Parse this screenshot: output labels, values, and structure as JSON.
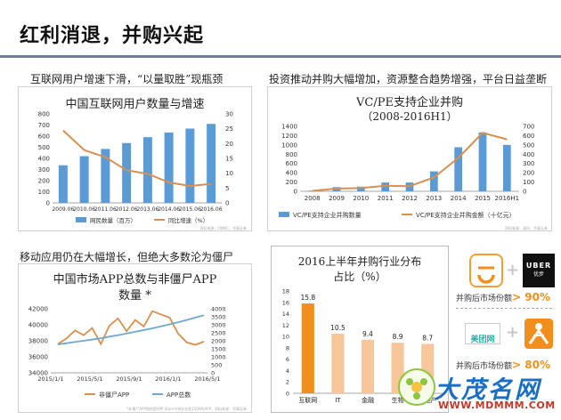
{
  "page": {
    "title": "红利消退，并购兴起",
    "colors": {
      "bar_orange": "#f28e1c",
      "bar_blue": "#5b9bd5",
      "line_orange": "#d7904f",
      "line_blue": "#6fa8cf",
      "rule": "#6d7f96"
    }
  },
  "sections": {
    "top_left_caption": "互联网用户增速下滑，“以量取胜”现瓶颈",
    "top_right_caption": "投资推动并购大幅增加，资源整合趋势增强，平台日益垄断",
    "bottom_left_caption": "移动应用仍在大幅增长，但绝大多数沦为僵尸"
  },
  "chart_data": [
    {
      "id": "internet-users",
      "type": "bar",
      "title": "中国互联网用户数量与增速",
      "categories": [
        "2009.06",
        "2010.06",
        "2011.06",
        "2012.06",
        "2013.06",
        "2014.06",
        "2015.06",
        "2016.06"
      ],
      "series": [
        {
          "name": "网民数量（百万）",
          "type": "bar",
          "axis": "left",
          "values": [
            338,
            420,
            485,
            538,
            591,
            632,
            668,
            710
          ]
        },
        {
          "name": "同比增速（%）",
          "type": "line",
          "axis": "right",
          "values": [
            24.4,
            17.8,
            15.4,
            11.0,
            9.8,
            6.9,
            5.7,
            6.4
          ]
        }
      ],
      "y_left": {
        "min": 0,
        "max": 800,
        "ticks": [
          0,
          100,
          200,
          300,
          400,
          500,
          600,
          700,
          800
        ]
      },
      "y_right": {
        "min": 0,
        "max": 30,
        "ticks": [
          0,
          5,
          10,
          15,
          20,
          25,
          30
        ]
      },
      "source": "资料来源：CNNIC，华泰证券"
    },
    {
      "id": "vc-pe-mna",
      "type": "bar",
      "title_line1": "VC/PE支持企业并购",
      "title_line2": "（2008-2016H1）",
      "categories": [
        "2008",
        "2009",
        "2010",
        "2011",
        "2012",
        "2013",
        "2014",
        "2015",
        "2016H1"
      ],
      "series": [
        {
          "name": "VC/PE支持企业并购数量",
          "type": "bar",
          "axis": "left",
          "values": [
            15,
            90,
            100,
            190,
            190,
            430,
            950,
            1270,
            1000
          ]
        },
        {
          "name": "VC/PE支持企业并购金额（十亿元）",
          "type": "line",
          "axis": "right",
          "values": [
            5,
            30,
            35,
            60,
            55,
            150,
            360,
            630,
            560
          ]
        }
      ],
      "y_left": {
        "min": 0,
        "max": 1400,
        "ticks": [
          0,
          200,
          400,
          600,
          800,
          1000,
          1200,
          1400
        ]
      },
      "y_right": {
        "min": 0,
        "max": 700,
        "ticks": [
          0,
          100,
          200,
          300,
          400,
          500,
          600,
          700
        ]
      },
      "source": "资料来源：清科，华泰证券"
    },
    {
      "id": "app-count",
      "type": "line",
      "title_line1": "中国市场APP总数与非僵尸APP",
      "title_line2": "数量",
      "title_mark": "*",
      "x_ticks": [
        "2015/1/1",
        "2015/5/1",
        "2015/9/1",
        "2016/1/1",
        "2016/5/1"
      ],
      "series": [
        {
          "name": "非僵尸APP",
          "axis": "left",
          "values": [
            37600,
            38300,
            39300,
            38700,
            39600,
            37600,
            39900,
            40800,
            39200,
            40600,
            39800,
            41700,
            41300,
            40900,
            38900,
            37800,
            37500,
            37900
          ]
        },
        {
          "name": "APP总数",
          "axis": "right",
          "values": [
            1770,
            1850,
            1930,
            2000,
            2080,
            2160,
            2260,
            2350,
            2460,
            2560,
            2670,
            2780,
            2900,
            3030,
            3160,
            3300,
            3450,
            3600
          ]
        }
      ],
      "y_left": {
        "min": 34000,
        "max": 42000,
        "ticks": [
          34000,
          36000,
          38000,
          40000,
          42000
        ]
      },
      "y_right": {
        "min": 0,
        "max": 4000,
        "ticks": [
          0,
          500,
          1000,
          1500,
          2000,
          2500,
          3000,
          3500,
          4000
        ]
      },
      "source": "*非僵尸APP指的是APP Store中排名在前1500的APP，资料来源：华泰证券"
    },
    {
      "id": "mna-industry",
      "type": "bar",
      "title_line1": "2016上半年并购行业分布",
      "title_line2": "占比（%）",
      "categories": [
        "互联网",
        "IT",
        "金融",
        "生物",
        "房地产"
      ],
      "values": [
        15.8,
        10.5,
        9.4,
        8.9,
        8.7
      ],
      "labels": [
        "15.8",
        "10.5",
        "9.4",
        "8.9",
        "8.7"
      ],
      "y": {
        "min": 0,
        "max": 18,
        "ticks": [
          0,
          2,
          4,
          6,
          8,
          10,
          12,
          14,
          16,
          18
        ]
      }
    }
  ],
  "side": {
    "uber_label": "UBER",
    "uber_sub": "优步",
    "meituan_label": "美团网",
    "plus": "+",
    "note1": "并购后市场份额",
    "note1_value": "> 90%",
    "note2": "并购后市场份额",
    "note2_value": "> 80%"
  },
  "watermark": {
    "text": "大茂名网",
    "url": "WWW.MDMMM.COM"
  }
}
